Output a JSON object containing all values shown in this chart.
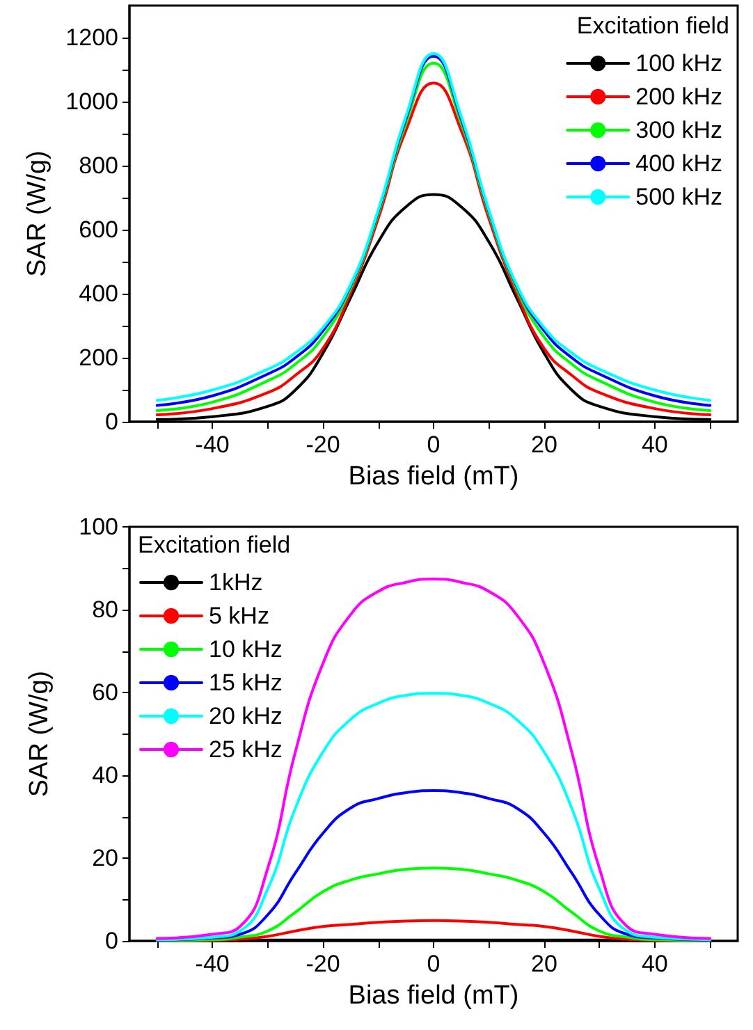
{
  "chart_data": [
    {
      "type": "line",
      "xlabel": "Bias field (mT)",
      "ylabel": "SAR (W/g)",
      "legend_title": "Excitation field",
      "legend": "top right",
      "marker": "none",
      "line_style": "solid",
      "x": [
        -50,
        -40,
        -30,
        -25,
        -20,
        -15,
        -10,
        -5,
        0,
        5,
        10,
        15,
        20,
        25,
        30,
        40,
        50
      ],
      "xlim": [
        -55,
        55
      ],
      "xticks": [
        {
          "value": -50,
          "label": null
        },
        -40,
        {
          "value": -30,
          "label": null
        },
        -20,
        {
          "value": -10,
          "label": null
        },
        0,
        {
          "value": 10,
          "label": null
        },
        20,
        {
          "value": 30,
          "label": null
        },
        40,
        {
          "value": 50,
          "label": null
        }
      ],
      "ylim": [
        0,
        1300
      ],
      "yticks": [
        0,
        {
          "value": 100,
          "label": null
        },
        200,
        {
          "value": 300,
          "label": null
        },
        400,
        {
          "value": 500,
          "label": null
        },
        600,
        {
          "value": 700,
          "label": null
        },
        800,
        {
          "value": 900,
          "label": null
        },
        1000,
        {
          "value": 1100,
          "label": null
        },
        1200
      ],
      "series": [
        {
          "name": "100 kHz",
          "color": "#000000",
          "values": [
            7,
            16,
            48,
            99,
            214,
            388,
            562,
            671,
            710,
            671,
            562,
            388,
            214,
            99,
            48,
            16,
            7
          ]
        },
        {
          "name": "200 kHz",
          "color": "#ff0000",
          "values": [
            22,
            41,
            91,
            145,
            229,
            403,
            635,
            910,
            1058,
            910,
            635,
            403,
            229,
            145,
            91,
            41,
            22
          ]
        },
        {
          "name": "300 kHz",
          "color": "#00ff00",
          "values": [
            35,
            61,
            128,
            180,
            265,
            417,
            650,
            932,
            1120,
            932,
            650,
            417,
            265,
            180,
            128,
            61,
            35
          ]
        },
        {
          "name": "400 kHz",
          "color": "#0000ff",
          "values": [
            51,
            81,
            149,
            200,
            284,
            425,
            657,
            946,
            1142,
            946,
            657,
            425,
            284,
            200,
            149,
            81,
            51
          ]
        },
        {
          "name": "500 kHz",
          "color": "#00ffff",
          "values": [
            67,
            99,
            164,
            215,
            294,
            429,
            661,
            954,
            1150,
            954,
            661,
            429,
            294,
            215,
            164,
            99,
            67
          ]
        }
      ]
    },
    {
      "type": "line",
      "xlabel": "Bias field (mT)",
      "ylabel": "SAR (W/g)",
      "legend_title": "Excitation field",
      "legend": "top left",
      "marker": "none",
      "line_style": "solid",
      "x": [
        -50,
        -40,
        -35,
        -30,
        -25,
        -20,
        -15,
        -10,
        -5,
        0,
        5,
        10,
        15,
        20,
        25,
        30,
        35,
        40,
        50
      ],
      "xlim": [
        -55,
        55
      ],
      "xticks": [
        {
          "value": -50,
          "label": null
        },
        -40,
        {
          "value": -30,
          "label": null
        },
        -20,
        {
          "value": -10,
          "label": null
        },
        0,
        {
          "value": 10,
          "label": null
        },
        20,
        {
          "value": 30,
          "label": null
        },
        40,
        {
          "value": 50,
          "label": null
        }
      ],
      "ylim": [
        0,
        100
      ],
      "yticks": [
        0,
        {
          "value": 10,
          "label": null
        },
        20,
        {
          "value": 30,
          "label": null
        },
        40,
        {
          "value": 50,
          "label": null
        },
        60,
        {
          "value": 70,
          "label": null
        },
        80,
        {
          "value": 90,
          "label": null
        },
        100
      ],
      "series": [
        {
          "name": "1kHz",
          "color": "#000000",
          "values": [
            0,
            0,
            0.1,
            0.2,
            0.2,
            0.2,
            0.2,
            0.2,
            0.2,
            0.2,
            0.2,
            0.2,
            0.2,
            0.2,
            0.2,
            0.2,
            0.1,
            0,
            0
          ]
        },
        {
          "name": "5 kHz",
          "color": "#ff0000",
          "values": [
            0,
            0.1,
            0.4,
            1.1,
            2.4,
            3.5,
            4.0,
            4.5,
            4.8,
            4.9,
            4.8,
            4.5,
            4.0,
            3.5,
            2.4,
            1.1,
            0.4,
            0.1,
            0
          ]
        },
        {
          "name": "10 kHz",
          "color": "#00ff00",
          "values": [
            0.1,
            0.3,
            0.9,
            2.4,
            6.9,
            11.9,
            14.7,
            16.2,
            17.3,
            17.6,
            17.3,
            16.2,
            14.7,
            11.9,
            6.9,
            2.4,
            0.9,
            0.3,
            0.1
          ]
        },
        {
          "name": "15 kHz",
          "color": "#0000ff",
          "values": [
            0.2,
            0.7,
            1.6,
            6.3,
            16.4,
            26,
            32.1,
            34.4,
            35.8,
            36.3,
            35.8,
            34.4,
            32.1,
            26,
            16.4,
            6.3,
            1.6,
            0.7,
            0.2
          ]
        },
        {
          "name": "20 kHz",
          "color": "#00ffff",
          "values": [
            0.3,
            0.9,
            2.4,
            12.5,
            32,
            45.6,
            53.5,
            57.4,
            59.3,
            59.8,
            59.3,
            57.4,
            53.5,
            45.6,
            32,
            12.5,
            2.4,
            0.9,
            0.3
          ]
        },
        {
          "name": "25 kHz",
          "color": "#ff00ff",
          "values": [
            0.6,
            1.6,
            3.5,
            17.5,
            45.6,
            67,
            78.8,
            84.4,
            86.6,
            87.4,
            86.6,
            84.4,
            78.8,
            67,
            45.6,
            17.5,
            3.5,
            1.6,
            0.6
          ]
        }
      ]
    }
  ]
}
